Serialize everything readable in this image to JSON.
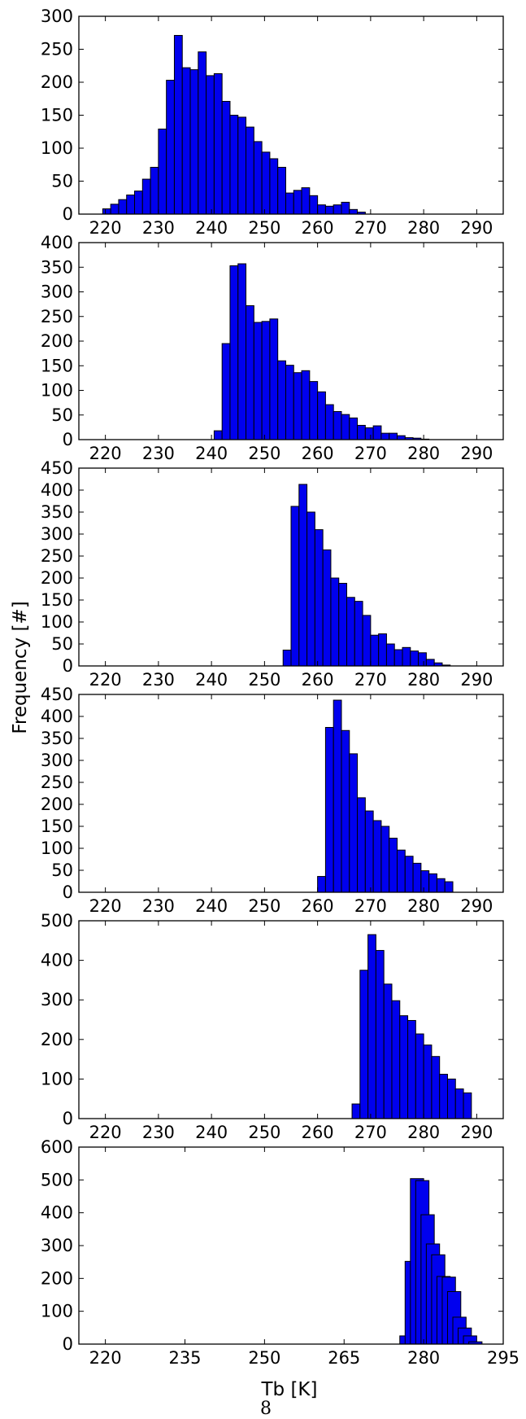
{
  "figure": {
    "ylabel": "Frequency [#]",
    "xlabel": "Tb [K]",
    "page_number": "8"
  },
  "chart_data": [
    {
      "type": "bar",
      "bin_width": 1.5,
      "xlim": [
        215,
        295
      ],
      "ylim": [
        0,
        300
      ],
      "xticks": [
        220,
        230,
        240,
        250,
        260,
        270,
        280,
        290
      ],
      "yticks": [
        0,
        50,
        100,
        150,
        200,
        250,
        300
      ],
      "bin_starts": [
        219.5,
        221,
        222.5,
        224,
        225.5,
        227,
        228.5,
        230,
        231.5,
        233,
        234.5,
        236,
        237.5,
        239,
        240.5,
        242,
        243.5,
        245,
        246.5,
        248,
        249.5,
        251,
        252.5,
        254,
        255.5,
        257,
        258.5,
        260,
        261.5,
        263,
        264.5,
        266,
        267.5
      ],
      "values": [
        8,
        15,
        22,
        29,
        35,
        53,
        71,
        129,
        203,
        271,
        222,
        219,
        246,
        210,
        213,
        171,
        150,
        147,
        132,
        110,
        94,
        84,
        71,
        32,
        36,
        40,
        28,
        14,
        12,
        14,
        18,
        7,
        3
      ]
    },
    {
      "type": "bar",
      "bin_width": 1.5,
      "xlim": [
        215,
        295
      ],
      "ylim": [
        0,
        400
      ],
      "xticks": [
        220,
        230,
        240,
        250,
        260,
        270,
        280,
        290
      ],
      "yticks": [
        0,
        50,
        100,
        150,
        200,
        250,
        300,
        350,
        400
      ],
      "bin_starts": [
        240.5,
        242,
        243.5,
        245,
        246.5,
        248,
        249.5,
        251,
        252.5,
        254,
        255.5,
        257,
        258.5,
        260,
        261.5,
        263,
        264.5,
        266,
        267.5,
        269,
        270.5,
        272,
        273.5,
        275,
        276.5,
        278,
        279.5
      ],
      "values": [
        18,
        195,
        353,
        357,
        272,
        238,
        240,
        245,
        160,
        151,
        136,
        140,
        118,
        97,
        71,
        57,
        51,
        44,
        29,
        24,
        28,
        13,
        13,
        8,
        4,
        3,
        1
      ]
    },
    {
      "type": "bar",
      "bin_width": 1.5,
      "xlim": [
        215,
        295
      ],
      "ylim": [
        0,
        450
      ],
      "xticks": [
        220,
        230,
        240,
        250,
        260,
        270,
        280,
        290
      ],
      "yticks": [
        0,
        50,
        100,
        150,
        200,
        250,
        300,
        350,
        400,
        450
      ],
      "bin_starts": [
        253.5,
        255,
        256.5,
        258,
        259.5,
        261,
        262.5,
        264,
        265.5,
        267,
        268.5,
        270,
        271.5,
        273,
        274.5,
        276,
        277.5,
        279,
        280.5,
        282,
        283.5
      ],
      "values": [
        36,
        363,
        413,
        350,
        310,
        264,
        200,
        188,
        156,
        147,
        115,
        70,
        73,
        50,
        37,
        42,
        34,
        30,
        15,
        7,
        2
      ]
    },
    {
      "type": "bar",
      "bin_width": 1.5,
      "xlim": [
        215,
        295
      ],
      "ylim": [
        0,
        450
      ],
      "xticks": [
        220,
        230,
        240,
        250,
        260,
        270,
        280,
        290
      ],
      "yticks": [
        0,
        50,
        100,
        150,
        200,
        250,
        300,
        350,
        400,
        450
      ],
      "bin_starts": [
        260,
        261.5,
        263,
        264.5,
        266,
        267.5,
        269,
        270.5,
        272,
        273.5,
        275,
        276.5,
        278,
        279.5,
        281,
        282.5,
        284
      ],
      "values": [
        36,
        375,
        437,
        368,
        315,
        215,
        185,
        163,
        150,
        123,
        96,
        82,
        66,
        49,
        42,
        31,
        24
      ]
    },
    {
      "type": "bar",
      "bin_width": 1.5,
      "xlim": [
        215,
        295
      ],
      "ylim": [
        0,
        500
      ],
      "xticks": [
        220,
        230,
        240,
        250,
        260,
        270,
        280,
        290
      ],
      "yticks": [
        0,
        100,
        200,
        300,
        400,
        500
      ],
      "bin_starts": [
        266.5,
        268,
        269.5,
        271,
        272.5,
        274,
        275.5,
        277,
        278.5,
        280,
        281.5,
        283,
        284.5,
        286,
        287.5
      ],
      "values": [
        37,
        375,
        465,
        425,
        340,
        298,
        260,
        248,
        214,
        186,
        157,
        112,
        100,
        75,
        65
      ]
    },
    {
      "type": "bar",
      "bin_width": 2.5,
      "xlim": [
        215,
        295
      ],
      "ylim": [
        0,
        600
      ],
      "xticks": [
        220,
        235,
        250,
        265,
        280,
        295
      ],
      "yticks": [
        0,
        100,
        200,
        300,
        400,
        500,
        600
      ],
      "bin_starts": [
        275.5,
        276.5,
        277.5,
        278.5,
        279.5,
        280.5,
        281.5,
        282.5,
        283.5,
        284.5,
        285.5,
        286.5,
        287.5,
        288.5
      ],
      "values": [
        25,
        252,
        504,
        498,
        394,
        305,
        272,
        206,
        204,
        160,
        82,
        49,
        25,
        7
      ]
    }
  ]
}
